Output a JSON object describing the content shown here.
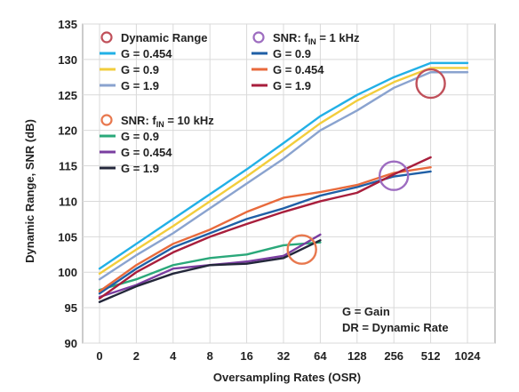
{
  "chart_data": {
    "type": "line",
    "title": "",
    "xlabel": "Oversampling Rates (OSR)",
    "ylabel": "Dynamic Range, SNR (dB)",
    "categories": [
      "0",
      "2",
      "4",
      "8",
      "16",
      "32",
      "64",
      "128",
      "256",
      "512",
      "1024"
    ],
    "ylim": [
      90,
      135
    ],
    "yticks": [
      90,
      95,
      100,
      105,
      110,
      115,
      120,
      125,
      130,
      135
    ],
    "grid": true,
    "legend_groups": [
      {
        "marker_color": "#c0505a",
        "label_main": "Dynamic Range",
        "label_sub": "",
        "label_tail": ""
      },
      {
        "marker_color": "#e8784e",
        "label_main": "SNR: f",
        "label_sub": "IN",
        "label_tail": " = 10 kHz"
      },
      {
        "marker_color": "#9d6cc0",
        "label_main": "SNR: f",
        "label_sub": "IN",
        "label_tail": " = 1 kHz"
      }
    ],
    "series": [
      {
        "name": "G = 0.454",
        "group": 0,
        "color": "#22b0e6",
        "x": [
          0,
          1,
          2,
          3,
          4,
          5,
          6,
          7,
          8,
          9,
          10
        ],
        "values": [
          100.5,
          104.0,
          107.5,
          111.0,
          114.5,
          118.2,
          122.0,
          125.0,
          127.5,
          129.5,
          129.5
        ]
      },
      {
        "name": "G = 0.9",
        "group": 0,
        "color": "#f2cd3c",
        "x": [
          0,
          1,
          2,
          3,
          4,
          5,
          6,
          7,
          8,
          9,
          10
        ],
        "values": [
          99.8,
          103.2,
          106.5,
          110.0,
          113.5,
          117.2,
          121.0,
          124.2,
          126.8,
          128.8,
          128.8
        ]
      },
      {
        "name": "G = 1.9",
        "group": 0,
        "color": "#8aa3cf",
        "x": [
          0,
          1,
          2,
          3,
          4,
          5,
          6,
          7,
          8,
          9,
          10
        ],
        "values": [
          99.0,
          102.4,
          105.5,
          109.0,
          112.5,
          116.0,
          120.0,
          122.8,
          126.0,
          128.2,
          128.2
        ]
      },
      {
        "name": "G = 0.9",
        "group": 1,
        "color": "#2aa87a",
        "x": [
          0,
          1,
          2,
          3,
          4,
          5,
          6
        ],
        "values": [
          97.5,
          99.0,
          101.0,
          102.0,
          102.5,
          103.8,
          104.2
        ]
      },
      {
        "name": "G = 0.454",
        "group": 1,
        "color": "#7a3ea0",
        "x": [
          0,
          1,
          2,
          3,
          4,
          5,
          6
        ],
        "values": [
          96.5,
          98.2,
          100.5,
          101.0,
          101.5,
          102.3,
          105.3
        ]
      },
      {
        "name": "G = 1.9",
        "group": 1,
        "color": "#23273a",
        "x": [
          0,
          1,
          2,
          3,
          4,
          5,
          6
        ],
        "values": [
          95.8,
          98.0,
          99.8,
          101.0,
          101.2,
          102.0,
          104.5
        ]
      },
      {
        "name": "G = 0.9",
        "group": 2,
        "color": "#1f5fa6",
        "x": [
          0,
          1,
          2,
          3,
          4,
          5,
          6,
          7,
          8,
          9
        ],
        "values": [
          97.0,
          100.5,
          103.5,
          105.5,
          107.5,
          109.0,
          110.8,
          112.0,
          113.5,
          114.2
        ]
      },
      {
        "name": "G = 0.454",
        "group": 2,
        "color": "#e86a3c",
        "x": [
          0,
          1,
          2,
          3,
          4,
          5,
          6,
          7,
          8,
          9
        ],
        "values": [
          97.3,
          101.0,
          104.0,
          106.0,
          108.5,
          110.5,
          111.3,
          112.3,
          114.0,
          114.8
        ]
      },
      {
        "name": "G = 1.9",
        "group": 2,
        "color": "#a81e3c",
        "x": [
          0,
          1,
          2,
          3,
          4,
          5,
          6,
          7,
          8,
          9
        ],
        "values": [
          96.3,
          100.0,
          102.8,
          105.0,
          106.8,
          108.5,
          110.0,
          111.2,
          113.8,
          116.2
        ]
      }
    ],
    "highlight_circles": [
      {
        "color": "#c0505a",
        "x": 9,
        "y": 126.6
      },
      {
        "color": "#9d6cc0",
        "x": 8,
        "y": 113.6
      },
      {
        "color": "#e8784e",
        "x": 5.5,
        "y": 103.2
      }
    ],
    "notes": [
      "G = Gain",
      "DR = Dynamic Rate"
    ]
  }
}
